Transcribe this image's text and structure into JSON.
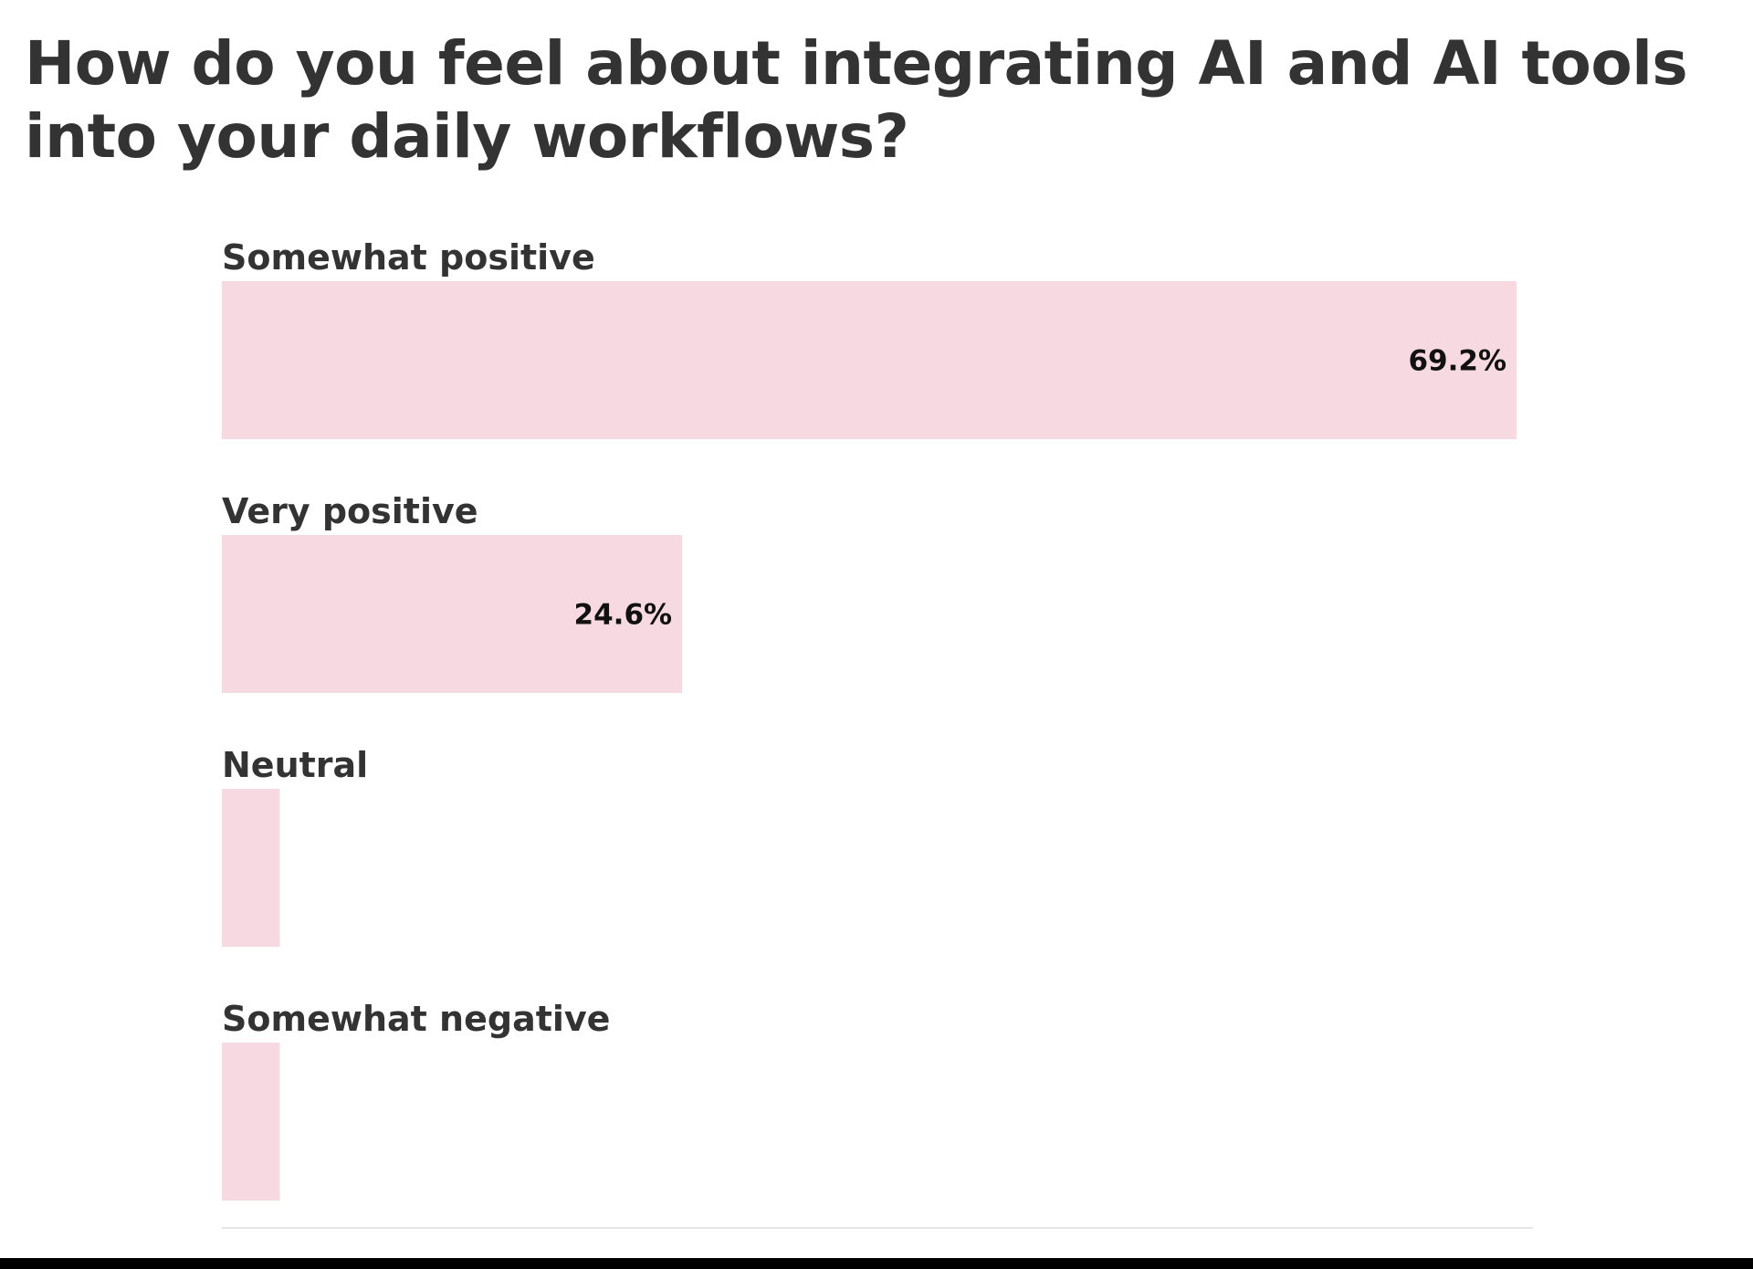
{
  "chart_data": {
    "type": "bar",
    "orientation": "horizontal",
    "title": "How do you feel about integrating AI and AI tools into your daily workflows?",
    "categories": [
      "Somewhat positive",
      "Very positive",
      "Neutral",
      "Somewhat negative"
    ],
    "values": [
      69.2,
      24.6,
      3.1,
      3.1
    ],
    "value_labels": [
      "69.2%",
      "24.6%",
      "",
      ""
    ],
    "xlim": [
      0,
      70
    ],
    "bar_color": "#f7d9e2",
    "grid": false,
    "legend": "none"
  }
}
